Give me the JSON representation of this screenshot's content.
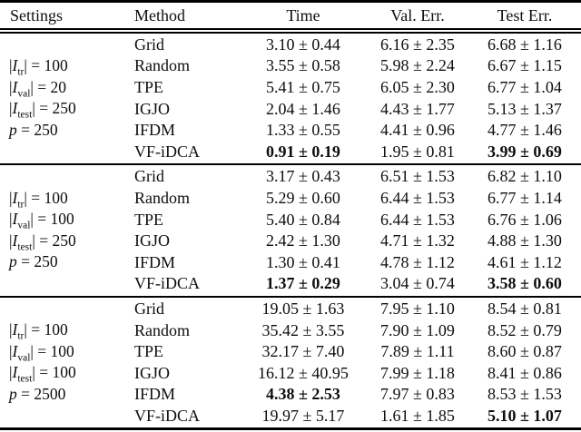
{
  "table": {
    "headers": [
      "Settings",
      "Method",
      "Time",
      "Val. Err.",
      "Test Err."
    ],
    "blocks": [
      {
        "settings": [
          {
            "pre": "|",
            "var": "I",
            "sub": "tr",
            "post": "| = 100"
          },
          {
            "pre": "|",
            "var": "I",
            "sub": "val",
            "post": "| = 20"
          },
          {
            "pre": "|",
            "var": "I",
            "sub": "test",
            "post": "| = 250"
          },
          {
            "pre": "",
            "var": "p",
            "sub": "",
            "post": " = 250"
          }
        ],
        "rows": [
          {
            "method": "Grid",
            "time": "3.10 ± 0.44",
            "val_err": "6.16 ± 2.35",
            "test_err": "6.68 ± 1.16",
            "bold": {}
          },
          {
            "method": "Random",
            "time": "3.55 ± 0.58",
            "val_err": "5.98 ± 2.24",
            "test_err": "6.67 ± 1.15",
            "bold": {}
          },
          {
            "method": "TPE",
            "time": "5.41 ± 0.75",
            "val_err": "6.05 ± 2.30",
            "test_err": "6.77 ± 1.04",
            "bold": {}
          },
          {
            "method": "IGJO",
            "time": "2.04 ± 1.46",
            "val_err": "4.43 ± 1.77",
            "test_err": "5.13 ± 1.37",
            "bold": {}
          },
          {
            "method": "IFDM",
            "time": "1.33 ± 0.55",
            "val_err": "4.41 ± 0.96",
            "test_err": "4.77 ± 1.46",
            "bold": {}
          },
          {
            "method": "VF-iDCA",
            "time": "0.91 ± 0.19",
            "val_err": "1.95 ± 0.81",
            "test_err": "3.99 ± 0.69",
            "bold": {
              "time": true,
              "test_err": true
            }
          }
        ]
      },
      {
        "settings": [
          {
            "pre": "|",
            "var": "I",
            "sub": "tr",
            "post": "| = 100"
          },
          {
            "pre": "|",
            "var": "I",
            "sub": "val",
            "post": "| = 100"
          },
          {
            "pre": "|",
            "var": "I",
            "sub": "test",
            "post": "| = 250"
          },
          {
            "pre": "",
            "var": "p",
            "sub": "",
            "post": " = 250"
          }
        ],
        "rows": [
          {
            "method": "Grid",
            "time": "3.17 ± 0.43",
            "val_err": "6.51 ± 1.53",
            "test_err": "6.82 ± 1.10",
            "bold": {}
          },
          {
            "method": "Random",
            "time": "5.29 ± 0.60",
            "val_err": "6.44 ± 1.53",
            "test_err": "6.77 ± 1.14",
            "bold": {}
          },
          {
            "method": "TPE",
            "time": "5.40 ± 0.84",
            "val_err": "6.44 ± 1.53",
            "test_err": "6.76 ± 1.06",
            "bold": {}
          },
          {
            "method": "IGJO",
            "time": "2.42 ± 1.30",
            "val_err": "4.71 ± 1.32",
            "test_err": "4.88 ± 1.30",
            "bold": {}
          },
          {
            "method": "IFDM",
            "time": "1.30 ± 0.41",
            "val_err": "4.78 ± 1.12",
            "test_err": "4.61 ± 1.12",
            "bold": {}
          },
          {
            "method": "VF-iDCA",
            "time": "1.37 ± 0.29",
            "val_err": "3.04 ± 0.74",
            "test_err": "3.58 ± 0.60",
            "bold": {
              "time": true,
              "test_err": true
            }
          }
        ]
      },
      {
        "settings": [
          {
            "pre": "|",
            "var": "I",
            "sub": "tr",
            "post": "| = 100"
          },
          {
            "pre": "|",
            "var": "I",
            "sub": "val",
            "post": "| = 100"
          },
          {
            "pre": "|",
            "var": "I",
            "sub": "test",
            "post": "| = 100"
          },
          {
            "pre": "",
            "var": "p",
            "sub": "",
            "post": " = 2500"
          }
        ],
        "rows": [
          {
            "method": "Grid",
            "time": "19.05 ± 1.63",
            "val_err": "7.95 ± 1.10",
            "test_err": "8.54 ± 0.81",
            "bold": {}
          },
          {
            "method": "Random",
            "time": "35.42 ± 3.55",
            "val_err": "7.90 ± 1.09",
            "test_err": "8.52 ± 0.79",
            "bold": {}
          },
          {
            "method": "TPE",
            "time": "32.17 ± 7.40",
            "val_err": "7.89 ± 1.11",
            "test_err": "8.60 ± 0.87",
            "bold": {}
          },
          {
            "method": "IGJO",
            "time": "16.12 ± 40.95",
            "val_err": "7.99 ± 1.18",
            "test_err": "8.41 ± 0.86",
            "bold": {}
          },
          {
            "method": "IFDM",
            "time": "4.38 ± 2.53",
            "val_err": "7.97 ± 0.83",
            "test_err": "8.53 ± 1.53",
            "bold": {
              "time": true
            }
          },
          {
            "method": "VF-iDCA",
            "time": "19.97 ± 5.17",
            "val_err": "1.61 ± 1.85",
            "test_err": "5.10 ± 1.07",
            "bold": {
              "test_err": true
            }
          }
        ]
      }
    ]
  }
}
